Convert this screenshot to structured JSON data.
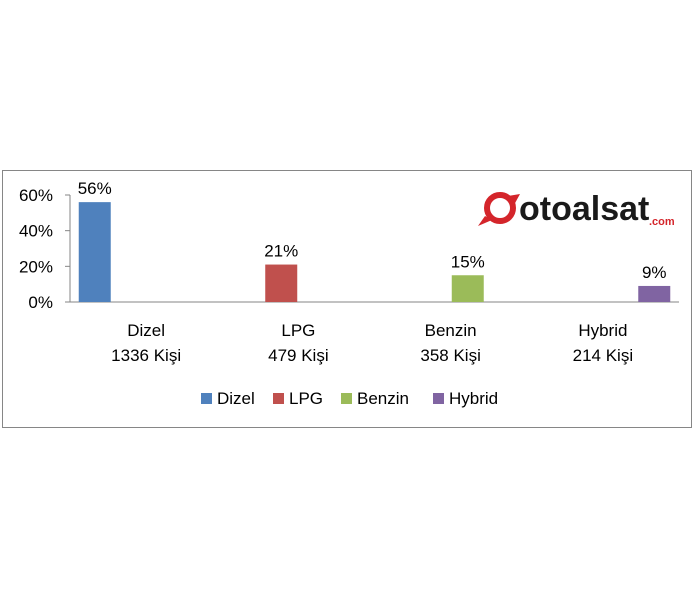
{
  "chart_data": {
    "type": "bar",
    "categories": [
      "Dizel",
      "LPG",
      "Benzin",
      "Hybrid"
    ],
    "category_sublabels": [
      "1336 Kişi",
      "479 Kişi",
      "358 Kişi",
      "214 Kişi"
    ],
    "series": [
      {
        "name": "Dizel",
        "color": "#4f81bd",
        "values": [
          56,
          null,
          null,
          null
        ]
      },
      {
        "name": "LPG",
        "color": "#c0504d",
        "values": [
          null,
          21,
          null,
          null
        ]
      },
      {
        "name": "Benzin",
        "color": "#9bbb59",
        "values": [
          null,
          null,
          15,
          null
        ]
      },
      {
        "name": "Hybrid",
        "color": "#8064a2",
        "values": [
          null,
          null,
          null,
          9
        ]
      }
    ],
    "data_labels": [
      "56%",
      "21%",
      "15%",
      "9%"
    ],
    "y_ticks": [
      "0%",
      "20%",
      "40%",
      "60%"
    ],
    "ylim": [
      0,
      60
    ],
    "y_unit": "%",
    "grid": false,
    "legend_position": "bottom",
    "title": "",
    "xlabel": "",
    "ylabel": ""
  },
  "logo": {
    "text": "otoalsat",
    "suffix": ".com",
    "colors": {
      "mark": "#d4252b",
      "text": "#1a1a1a"
    }
  }
}
